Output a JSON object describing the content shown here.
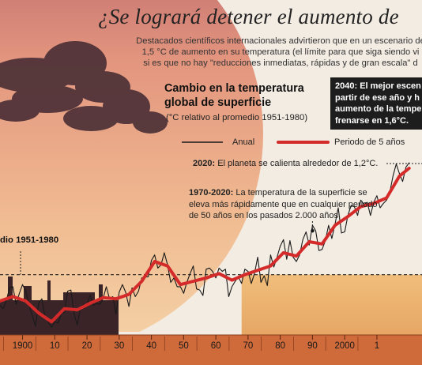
{
  "header": {
    "title": "¿Se logrará detener el aumento de",
    "intro_lines": [
      "Destacados científicos internacionales advirtieron que en un escenario de",
      "1,5 °C de aumento en su temperatura (el límite para que siga siendo vi",
      "si es que no hay \"reducciones inmediatas, rápidas y de gran escala\" d"
    ]
  },
  "chart_data": {
    "type": "line",
    "title": "Cambio en la temperatura global de superficie",
    "subtitle": "(°C relativo al promedio 1951-1980)",
    "xlabel": "",
    "ylabel": "",
    "xlim": [
      1893,
      2024
    ],
    "x_ticks": [
      1900,
      1910,
      1920,
      1930,
      1940,
      1950,
      1960,
      1970,
      1980,
      1990,
      2000,
      2010
    ],
    "x_tick_labels": [
      "1900",
      "10",
      "20",
      "30",
      "40",
      "50",
      "60",
      "70",
      "80",
      "90",
      "2000",
      "1"
    ],
    "ylim": [
      -0.55,
      1.1
    ],
    "reference_label": "dio 1951-1980",
    "reference_value": 0,
    "grid": false,
    "legend": {
      "placement": "top",
      "entries": [
        "Anual",
        "Periodo de 5 años"
      ]
    },
    "series": [
      {
        "name": "Anual",
        "color": "#1a1a1a",
        "x": [
          1893,
          1894,
          1895,
          1896,
          1897,
          1898,
          1899,
          1900,
          1901,
          1902,
          1903,
          1904,
          1905,
          1906,
          1907,
          1908,
          1909,
          1910,
          1911,
          1912,
          1913,
          1914,
          1915,
          1916,
          1917,
          1918,
          1919,
          1920,
          1921,
          1922,
          1923,
          1924,
          1925,
          1926,
          1927,
          1928,
          1929,
          1930,
          1931,
          1932,
          1933,
          1934,
          1935,
          1936,
          1937,
          1938,
          1939,
          1940,
          1941,
          1942,
          1943,
          1944,
          1945,
          1946,
          1947,
          1948,
          1949,
          1950,
          1951,
          1952,
          1953,
          1954,
          1955,
          1956,
          1957,
          1958,
          1959,
          1960,
          1961,
          1962,
          1963,
          1964,
          1965,
          1966,
          1967,
          1968,
          1969,
          1970,
          1971,
          1972,
          1973,
          1974,
          1975,
          1976,
          1977,
          1978,
          1979,
          1980,
          1981,
          1982,
          1983,
          1984,
          1985,
          1986,
          1987,
          1988,
          1989,
          1990,
          1991,
          1992,
          1993,
          1994,
          1995,
          1996,
          1997,
          1998,
          1999,
          2000,
          2001,
          2002,
          2003,
          2004,
          2005,
          2006,
          2007,
          2008,
          2009,
          2010,
          2011,
          2012,
          2013,
          2014,
          2015,
          2016,
          2017,
          2018,
          2019,
          2020
        ],
        "y": [
          -0.28,
          -0.31,
          -0.23,
          -0.12,
          -0.11,
          -0.27,
          -0.17,
          -0.09,
          -0.15,
          -0.28,
          -0.37,
          -0.47,
          -0.26,
          -0.22,
          -0.39,
          -0.43,
          -0.48,
          -0.43,
          -0.44,
          -0.36,
          -0.34,
          -0.15,
          -0.14,
          -0.36,
          -0.46,
          -0.3,
          -0.27,
          -0.27,
          -0.19,
          -0.28,
          -0.26,
          -0.27,
          -0.22,
          -0.11,
          -0.22,
          -0.2,
          -0.36,
          -0.16,
          -0.09,
          -0.16,
          -0.29,
          -0.12,
          -0.2,
          -0.15,
          -0.03,
          -0.02,
          -0.02,
          0.13,
          0.18,
          0.06,
          0.09,
          0.2,
          0.09,
          -0.07,
          -0.03,
          -0.11,
          -0.11,
          -0.17,
          -0.07,
          0.01,
          0.08,
          -0.13,
          -0.14,
          -0.19,
          0.05,
          0.06,
          0.03,
          -0.03,
          0.06,
          0.03,
          0.05,
          -0.2,
          -0.11,
          -0.06,
          -0.02,
          -0.08,
          0.05,
          0.03,
          -0.08,
          0.01,
          0.16,
          -0.07,
          -0.01,
          -0.1,
          0.18,
          0.07,
          0.16,
          0.26,
          0.32,
          0.14,
          0.31,
          0.16,
          0.12,
          0.18,
          0.32,
          0.39,
          0.27,
          0.45,
          0.4,
          0.22,
          0.23,
          0.31,
          0.45,
          0.33,
          0.46,
          0.61,
          0.38,
          0.39,
          0.54,
          0.63,
          0.62,
          0.54,
          0.68,
          0.64,
          0.66,
          0.54,
          0.66,
          0.72,
          0.61,
          0.65,
          0.68,
          0.75,
          0.9,
          1.01,
          0.92,
          0.85,
          0.98,
          1.02
        ]
      },
      {
        "name": "Periodo de 5 años",
        "color": "#d42a2a",
        "x": [
          1893,
          1897,
          1901,
          1905,
          1909,
          1913,
          1917,
          1921,
          1925,
          1929,
          1933,
          1937,
          1941,
          1945,
          1949,
          1953,
          1957,
          1961,
          1965,
          1969,
          1973,
          1977,
          1981,
          1985,
          1989,
          1993,
          1997,
          2001,
          2005,
          2009,
          2013,
          2017,
          2020
        ],
        "y": [
          -0.24,
          -0.2,
          -0.24,
          -0.35,
          -0.43,
          -0.31,
          -0.32,
          -0.26,
          -0.21,
          -0.22,
          -0.18,
          -0.06,
          0.12,
          0.08,
          -0.09,
          -0.06,
          -0.03,
          0.01,
          -0.05,
          0.0,
          0.04,
          0.08,
          0.2,
          0.17,
          0.3,
          0.28,
          0.45,
          0.53,
          0.62,
          0.65,
          0.7,
          0.9,
          0.97
        ]
      }
    ],
    "annotations": [
      {
        "year": 2040,
        "lead": "2040:",
        "lines": [
          "El mejor escen",
          "partir de ese año y h",
          "aumento de la tempe",
          "frenarse en 1,6°C."
        ]
      },
      {
        "year": 2020,
        "lead": "2020:",
        "lines": [
          "El planeta se calienta alrededor de 1,2°C."
        ]
      },
      {
        "year": "1970-2020",
        "lead": "1970-2020:",
        "lines": [
          "La temperatura de la superficie se",
          "eleva más rápidamente que en cualquier periodo",
          "de 50 años en los pasados 2.000 años."
        ]
      }
    ]
  },
  "colors": {
    "background": "#f3ece3",
    "axis_band": "#d06a3c",
    "sunset_top": "#e69a7b",
    "sunset_bottom": "#f2c89b",
    "highlight_band": "#e7a55a"
  }
}
